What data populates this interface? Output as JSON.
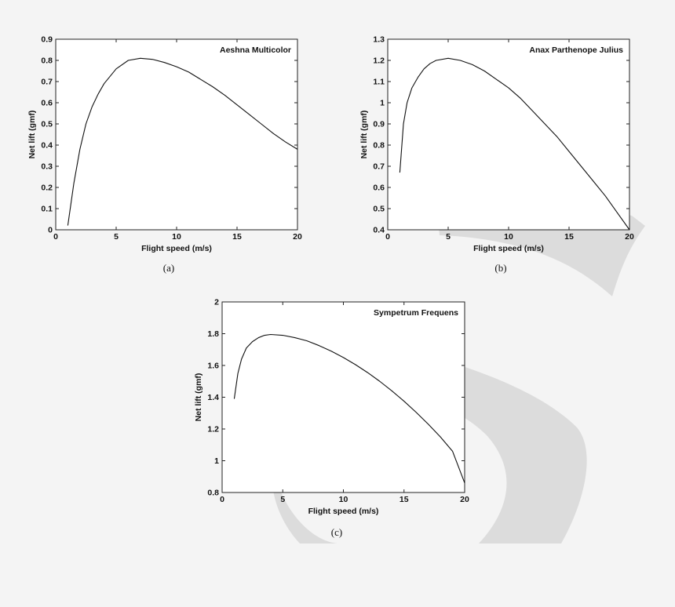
{
  "chart_data": [
    {
      "type": "line",
      "title": "Aeshna Multicolor",
      "xlabel": "Flight speed (m/s)",
      "ylabel": "Net lift (gmf)",
      "caption": "(a)",
      "xlim": [
        0,
        20
      ],
      "ylim": [
        0,
        0.9
      ],
      "xticks": [
        0,
        5,
        10,
        15,
        20
      ],
      "yticks": [
        0,
        0.1,
        0.2,
        0.3,
        0.4,
        0.5,
        0.6,
        0.7,
        0.8,
        0.9
      ],
      "grid": false,
      "series": [
        {
          "x": [
            1,
            1.5,
            2,
            2.5,
            3,
            3.5,
            4,
            5,
            6,
            7,
            8,
            9,
            10,
            11,
            12,
            13,
            14,
            15,
            16,
            17,
            18,
            19,
            20
          ],
          "y": [
            0.02,
            0.22,
            0.38,
            0.5,
            0.58,
            0.64,
            0.69,
            0.76,
            0.8,
            0.81,
            0.805,
            0.79,
            0.77,
            0.745,
            0.71,
            0.675,
            0.635,
            0.59,
            0.545,
            0.5,
            0.455,
            0.415,
            0.38
          ]
        }
      ]
    },
    {
      "type": "line",
      "title": "Anax Parthenope Julius",
      "xlabel": "Flight speed (m/s)",
      "ylabel": "Net lift (gmf)",
      "caption": "(b)",
      "xlim": [
        0,
        20
      ],
      "ylim": [
        0.4,
        1.3
      ],
      "xticks": [
        0,
        5,
        10,
        15,
        20
      ],
      "yticks": [
        0.4,
        0.5,
        0.6,
        0.7,
        0.8,
        0.9,
        1,
        1.1,
        1.2,
        1.3
      ],
      "grid": false,
      "series": [
        {
          "x": [
            1,
            1.3,
            1.6,
            2,
            2.5,
            3,
            3.5,
            4,
            5,
            6,
            7,
            8,
            9,
            10,
            11,
            12,
            13,
            14,
            15,
            16,
            17,
            18,
            19,
            20
          ],
          "y": [
            0.67,
            0.9,
            1.0,
            1.07,
            1.12,
            1.16,
            1.185,
            1.2,
            1.21,
            1.2,
            1.18,
            1.15,
            1.11,
            1.07,
            1.02,
            0.96,
            0.9,
            0.84,
            0.77,
            0.7,
            0.63,
            0.56,
            0.48,
            0.4
          ]
        }
      ]
    },
    {
      "type": "line",
      "title": "Sympetrum Frequens",
      "xlabel": "Flight speed (m/s)",
      "ylabel": "Net lift (gmf)",
      "caption": "(c)",
      "xlim": [
        0,
        20
      ],
      "ylim": [
        0.8,
        2
      ],
      "xticks": [
        0,
        5,
        10,
        15,
        20
      ],
      "yticks": [
        0.8,
        1,
        1.2,
        1.4,
        1.6,
        1.8,
        2
      ],
      "grid": false,
      "series": [
        {
          "x": [
            1,
            1.3,
            1.6,
            2,
            2.5,
            3,
            3.5,
            4,
            5,
            6,
            7,
            8,
            9,
            10,
            11,
            12,
            13,
            14,
            15,
            16,
            17,
            18,
            19,
            20
          ],
          "y": [
            1.39,
            1.55,
            1.64,
            1.71,
            1.75,
            1.775,
            1.79,
            1.795,
            1.79,
            1.775,
            1.755,
            1.725,
            1.69,
            1.65,
            1.605,
            1.555,
            1.5,
            1.44,
            1.375,
            1.305,
            1.23,
            1.15,
            1.06,
            0.86
          ]
        }
      ]
    }
  ]
}
